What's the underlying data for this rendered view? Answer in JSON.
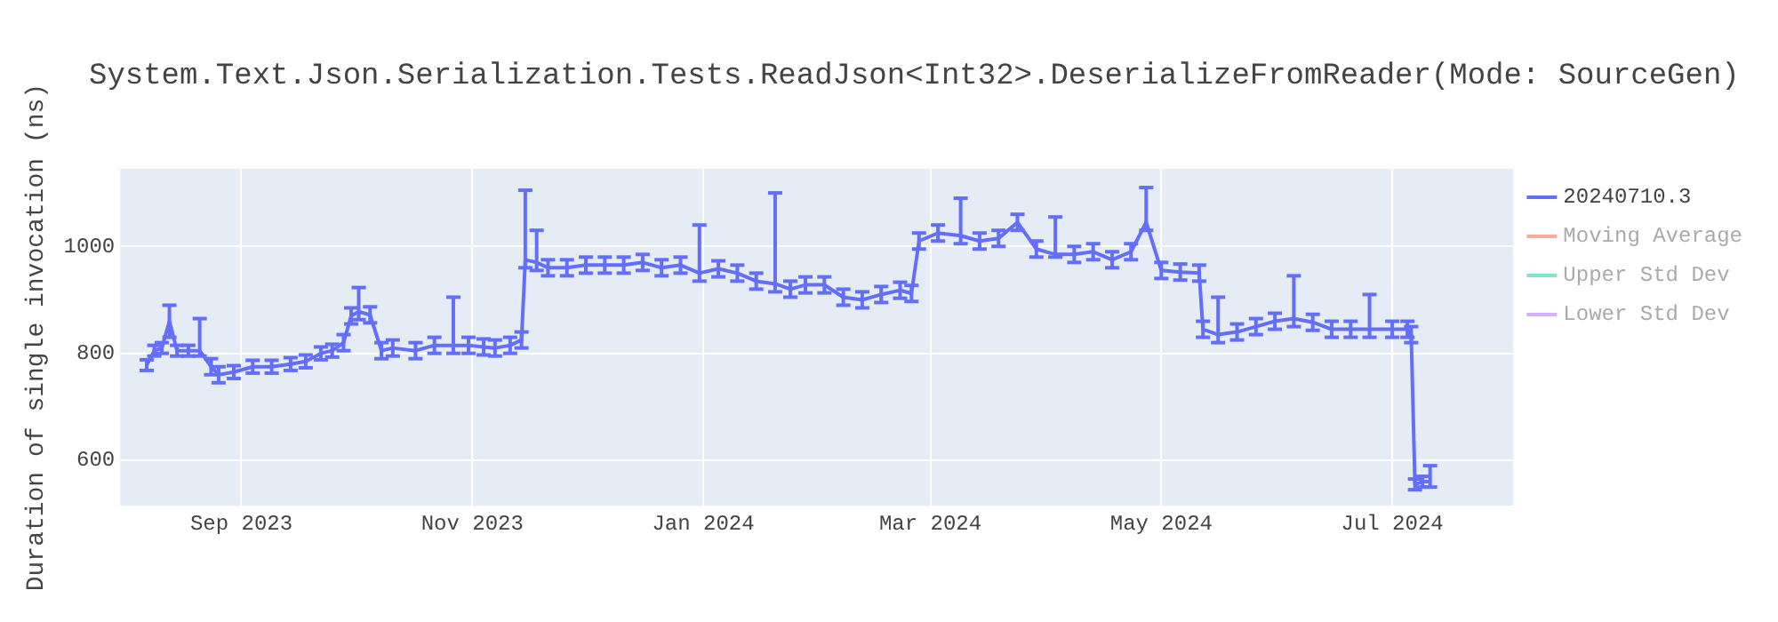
{
  "chart_data": {
    "type": "line",
    "title": "System.Text.Json.Serialization.Tests.ReadJson<Int32>.DeserializeFromReader(Mode: SourceGen)",
    "ylabel": "Duration of single invocation (ns)",
    "xlim": [
      "2023-07-31",
      "2024-08-02"
    ],
    "xticks": [
      {
        "value": "2023-09-01",
        "label": "Sep 2023"
      },
      {
        "value": "2023-11-01",
        "label": "Nov 2023"
      },
      {
        "value": "2024-01-01",
        "label": "Jan 2024"
      },
      {
        "value": "2024-03-01",
        "label": "Mar 2024"
      },
      {
        "value": "2024-05-01",
        "label": "May 2024"
      },
      {
        "value": "2024-07-01",
        "label": "Jul 2024"
      }
    ],
    "ylim": [
      515,
      1145
    ],
    "yticks": [
      600,
      800,
      1000
    ],
    "grid": true,
    "legend": "right",
    "line_style": "solid",
    "series": [
      {
        "name": "20240710.3",
        "color": "#636efa",
        "x": [
          "2023-08-07",
          "2023-08-09",
          "2023-08-11",
          "2023-08-13",
          "2023-08-15",
          "2023-08-18",
          "2023-08-21",
          "2023-08-24",
          "2023-08-26",
          "2023-08-30",
          "2023-09-04",
          "2023-09-09",
          "2023-09-14",
          "2023-09-18",
          "2023-09-22",
          "2023-09-25",
          "2023-09-28",
          "2023-09-30",
          "2023-10-02",
          "2023-10-05",
          "2023-10-08",
          "2023-10-11",
          "2023-10-17",
          "2023-10-22",
          "2023-10-27",
          "2023-10-31",
          "2023-11-04",
          "2023-11-07",
          "2023-11-11",
          "2023-11-14",
          "2023-11-15",
          "2023-11-18",
          "2023-11-21",
          "2023-11-26",
          "2023-12-01",
          "2023-12-06",
          "2023-12-11",
          "2023-12-16",
          "2023-12-21",
          "2023-12-26",
          "2023-12-31",
          "2024-01-05",
          "2024-01-10",
          "2024-01-15",
          "2024-01-20",
          "2024-01-24",
          "2024-01-28",
          "2024-02-02",
          "2024-02-07",
          "2024-02-12",
          "2024-02-17",
          "2024-02-22",
          "2024-02-25",
          "2024-02-27",
          "2024-03-03",
          "2024-03-09",
          "2024-03-14",
          "2024-03-19",
          "2024-03-24",
          "2024-03-29",
          "2024-04-03",
          "2024-04-08",
          "2024-04-13",
          "2024-04-18",
          "2024-04-23",
          "2024-04-27",
          "2024-05-01",
          "2024-05-06",
          "2024-05-11",
          "2024-05-12",
          "2024-05-16",
          "2024-05-21",
          "2024-05-26",
          "2024-05-31",
          "2024-06-05",
          "2024-06-10",
          "2024-06-15",
          "2024-06-20",
          "2024-06-25",
          "2024-07-01",
          "2024-07-05",
          "2024-07-06",
          "2024-07-07",
          "2024-07-09",
          "2024-07-11"
        ],
        "values": [
          778,
          805,
          810,
          860,
          805,
          805,
          805,
          775,
          760,
          765,
          775,
          775,
          780,
          785,
          800,
          805,
          820,
          870,
          878,
          872,
          805,
          810,
          805,
          815,
          815,
          815,
          812,
          810,
          815,
          825,
          975,
          970,
          960,
          960,
          965,
          965,
          965,
          970,
          960,
          965,
          950,
          958,
          950,
          935,
          930,
          920,
          928,
          928,
          905,
          900,
          910,
          918,
          912,
          1010,
          1025,
          1020,
          1010,
          1015,
          1045,
          995,
          985,
          985,
          990,
          975,
          990,
          1045,
          955,
          952,
          950,
          845,
          835,
          840,
          850,
          860,
          865,
          858,
          845,
          845,
          845,
          845,
          845,
          835,
          555,
          560,
          560
        ],
        "errors": [
          10,
          10,
          10,
          30,
          10,
          10,
          [
            795,
            865
          ],
          15,
          15,
          12,
          12,
          12,
          12,
          12,
          12,
          12,
          15,
          15,
          [
            863,
            923
          ],
          15,
          15,
          15,
          15,
          15,
          [
            800,
            905
          ],
          15,
          15,
          15,
          15,
          15,
          [
            960,
            1105
          ],
          [
            955,
            1030
          ],
          15,
          15,
          15,
          15,
          15,
          15,
          15,
          15,
          [
            935,
            1040
          ],
          15,
          15,
          15,
          [
            915,
            1100
          ],
          15,
          15,
          15,
          15,
          15,
          15,
          15,
          15,
          15,
          15,
          [
            1005,
            1090
          ],
          15,
          15,
          15,
          15,
          [
            980,
            1055
          ],
          15,
          15,
          15,
          15,
          [
            1030,
            1110
          ],
          15,
          15,
          15,
          15,
          [
            820,
            905
          ],
          15,
          15,
          15,
          [
            850,
            945
          ],
          15,
          15,
          15,
          [
            830,
            910
          ],
          15,
          15,
          15,
          10,
          10,
          [
            550,
            590
          ]
        ]
      },
      {
        "name": "Moving Average",
        "color": "#ef553b"
      },
      {
        "name": "Upper Std Dev",
        "color": "#00cc96"
      },
      {
        "name": "Lower Std Dev",
        "color": "#ab63fa"
      }
    ]
  }
}
